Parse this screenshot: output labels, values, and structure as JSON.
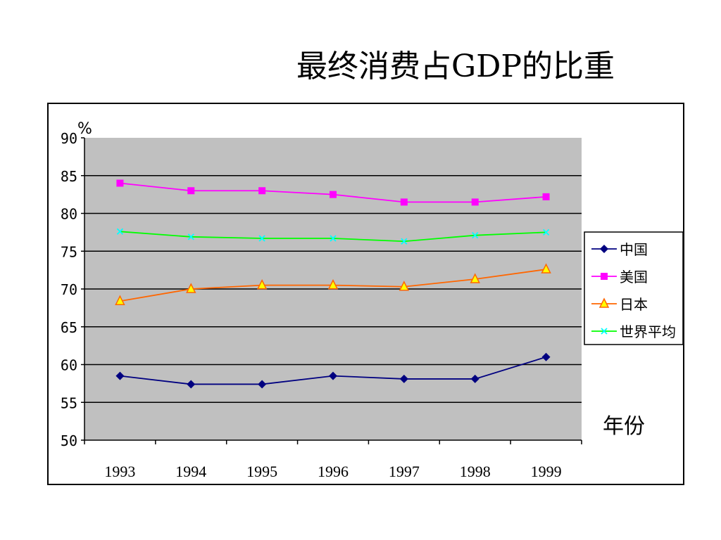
{
  "title": "最终消费占GDP的比重",
  "chart_data": {
    "type": "line",
    "title": "最终消费占GDP的比重",
    "ylabel": "%",
    "xlabel": "年份",
    "categories": [
      "1993",
      "1994",
      "1995",
      "1996",
      "1997",
      "1998",
      "1999"
    ],
    "ylim": [
      50,
      90
    ],
    "yticks": [
      50,
      55,
      60,
      65,
      70,
      75,
      80,
      85,
      90
    ],
    "grid": true,
    "legend_position": "right",
    "series": [
      {
        "name": "中国",
        "color": "#000080",
        "marker": "diamond",
        "values": [
          58.5,
          57.4,
          57.4,
          58.5,
          58.1,
          58.1,
          61.0
        ]
      },
      {
        "name": "美国",
        "color": "#FF00FF",
        "marker": "square",
        "values": [
          84.0,
          83.0,
          83.0,
          82.5,
          81.5,
          81.5,
          82.2
        ]
      },
      {
        "name": "日本",
        "color": "#FF6600",
        "marker": "triangle",
        "values": [
          68.4,
          70.0,
          70.5,
          70.5,
          70.3,
          71.3,
          72.6
        ]
      },
      {
        "name": "世界平均",
        "color": "#00FF00",
        "marker": "x",
        "values": [
          77.6,
          76.9,
          76.7,
          76.7,
          76.3,
          77.1,
          77.5
        ]
      }
    ]
  }
}
